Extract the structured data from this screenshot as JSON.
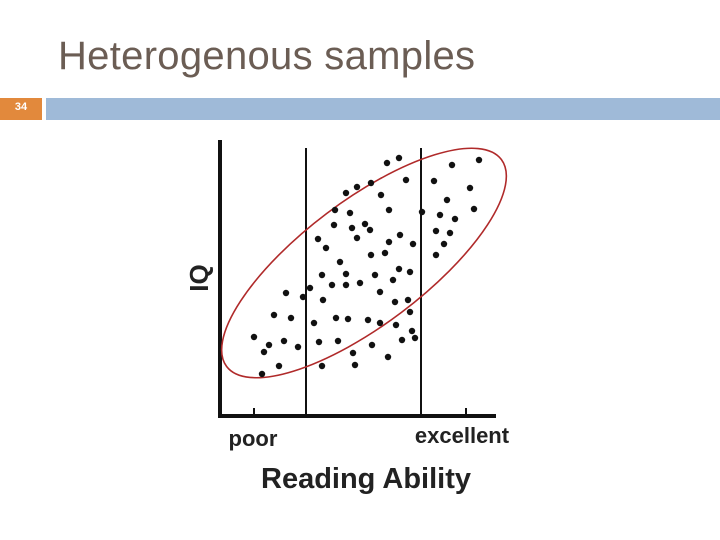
{
  "slide": {
    "title": "Heterogenous samples",
    "number": "34",
    "accent_color": "#e2893c",
    "bar_color": "#9fbad8",
    "title_color": "#6b5d54"
  },
  "diagram": {
    "y_label": "IQ",
    "x_label": "Reading Ability",
    "x_tick_low": "poor",
    "x_tick_high": "excellent",
    "ellipse_color": "#b02a2a"
  }
}
